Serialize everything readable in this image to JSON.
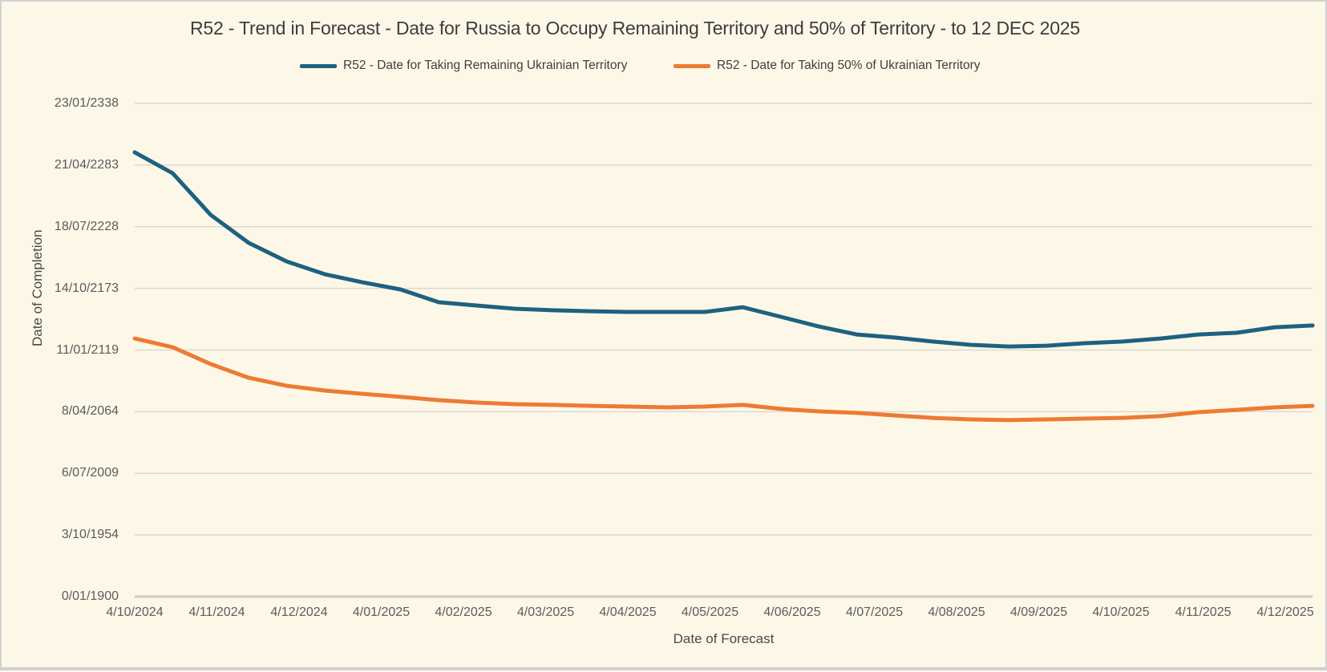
{
  "chart_data": {
    "type": "line",
    "title": "R52 - Trend in Forecast - Date for Russia to Occupy Remaining Territory and 50% of Territory - to 12 DEC 2025",
    "xlabel": "Date of Forecast",
    "ylabel": "Date of Completion",
    "legend_position": "top",
    "grid": "horizontal",
    "y_axis": {
      "min": 0,
      "max": 160000,
      "tick_interval": 20000,
      "tick_labels": [
        "0/01/1900",
        "3/10/1954",
        "6/07/2009",
        "8/04/2064",
        "11/01/2119",
        "14/10/2173",
        "18/07/2228",
        "21/04/2283",
        "23/01/2338"
      ]
    },
    "x_tick_labels": [
      "4/10/2024",
      "4/11/2024",
      "4/12/2024",
      "4/01/2025",
      "4/02/2025",
      "4/03/2025",
      "4/04/2025",
      "4/05/2025",
      "4/06/2025",
      "4/07/2025",
      "4/08/2025",
      "4/09/2025",
      "4/10/2025",
      "4/11/2025",
      "4/12/2025"
    ],
    "categories": [
      "4/10/2024",
      "18/10/2024",
      "1/11/2024",
      "15/11/2024",
      "29/11/2024",
      "13/12/2024",
      "27/12/2024",
      "10/01/2025",
      "24/01/2025",
      "7/02/2025",
      "21/02/2025",
      "7/03/2025",
      "21/03/2025",
      "4/04/2025",
      "18/04/2025",
      "2/05/2025",
      "16/05/2025",
      "30/05/2025",
      "13/06/2025",
      "27/06/2025",
      "11/07/2025",
      "25/07/2025",
      "8/08/2025",
      "22/08/2025",
      "5/09/2025",
      "19/09/2025",
      "3/10/2025",
      "17/10/2025",
      "31/10/2025",
      "14/11/2025",
      "28/11/2025",
      "12/12/2025"
    ],
    "series": [
      {
        "name": "R52 - Date for Taking Remaining Ukrainian Territory",
        "color": "#1E6180",
        "values": [
          144150,
          137350,
          123850,
          114750,
          108750,
          104600,
          101950,
          99650,
          95500,
          94450,
          93400,
          92900,
          92600,
          92350,
          92350,
          92350,
          93900,
          90800,
          87650,
          85050,
          84050,
          82750,
          81700,
          81150,
          81400,
          82200,
          82750,
          83750,
          85050,
          85600,
          87400,
          87950
        ]
      },
      {
        "name": "R52 - Date for Taking  50% of Ukrainian Territory",
        "color": "#EC7B33",
        "values": [
          83750,
          80900,
          75450,
          71000,
          68400,
          66850,
          65800,
          64800,
          63750,
          62950,
          62450,
          62200,
          61900,
          61650,
          61400,
          61650,
          62200,
          60900,
          60100,
          59600,
          58800,
          58000,
          57500,
          57250,
          57500,
          57750,
          58000,
          58550,
          59850,
          60600,
          61400,
          61900
        ]
      }
    ]
  },
  "colors": {
    "background": "#FDF7E8",
    "gridline": "#DCD9D1",
    "axis_line": "#CFCCC3",
    "tick_text": "#5C5C5C",
    "title_text": "#3D3D3D",
    "frame": "#D1D1D1"
  }
}
